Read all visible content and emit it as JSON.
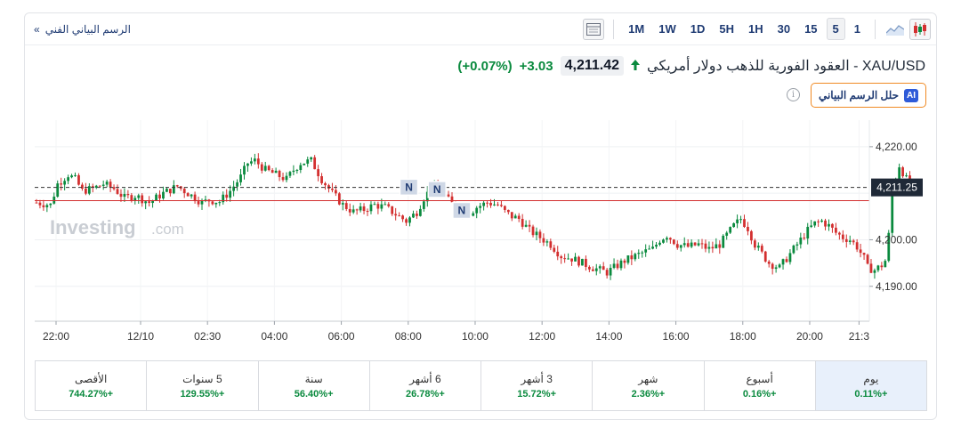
{
  "toolbar": {
    "back_label": "الرسم البياني الفني",
    "back_chevron": "»",
    "timeframes": [
      "1M",
      "1W",
      "1D",
      "5H",
      "1H",
      "30",
      "15",
      "5",
      "1"
    ],
    "active_timeframe": "5"
  },
  "header": {
    "title": "XAU/USD - العقود الفورية للذهب دولار أمريكي",
    "price": "4,211.42",
    "change": "+3.03",
    "change_pct": "(+0.07%)",
    "up_color": "#0a8a3e",
    "down_color": "#d32f2f"
  },
  "analyze_button": {
    "badge": "AI",
    "label": "حلل الرسم البياني"
  },
  "watermark": {
    "brand": "Investing",
    "suffix": ".com"
  },
  "chart_data": {
    "type": "candlestick",
    "symbol": "XAU/USD",
    "interval": "5",
    "x_tick_labels": [
      "22:00",
      "12/10",
      "02:30",
      "04:00",
      "06:00",
      "08:00",
      "10:00",
      "12:00",
      "14:00",
      "16:00",
      "18:00",
      "20:00",
      "21:3"
    ],
    "y_tick_labels": [
      "4,220.00",
      "4,200.00",
      "4,190.00"
    ],
    "y_ticks": [
      4220,
      4210,
      4200,
      4190
    ],
    "ylim": [
      4182.5,
      4223.8
    ],
    "xlim": [
      0,
      237
    ],
    "last_price_label": "4,211.25",
    "last_price": 4211.25,
    "prev_close_line": 4208.4,
    "grid": true,
    "path": [
      [
        0,
        4208
      ],
      [
        4,
        4207.5
      ],
      [
        6,
        4212
      ],
      [
        9,
        4214
      ],
      [
        11,
        4213
      ],
      [
        13,
        4210.5
      ],
      [
        16,
        4211
      ],
      [
        19,
        4212
      ],
      [
        22,
        4211
      ],
      [
        25,
        4209
      ],
      [
        28,
        4209.5
      ],
      [
        32,
        4208
      ],
      [
        36,
        4210
      ],
      [
        40,
        4211.5
      ],
      [
        44,
        4209.5
      ],
      [
        47,
        4208
      ],
      [
        49,
        4208.5
      ],
      [
        52,
        4208.2
      ],
      [
        55,
        4210.5
      ],
      [
        58,
        4213.5
      ],
      [
        60,
        4216.5
      ],
      [
        62,
        4217
      ],
      [
        65,
        4215
      ],
      [
        68,
        4214
      ],
      [
        71,
        4213
      ],
      [
        73,
        4215
      ],
      [
        75,
        4216.5
      ],
      [
        78,
        4217
      ],
      [
        81,
        4213
      ],
      [
        84,
        4210
      ],
      [
        87,
        4207.5
      ],
      [
        90,
        4206
      ],
      [
        93,
        4206.5
      ],
      [
        96,
        4207.5
      ],
      [
        99,
        4207
      ],
      [
        102,
        4205.5
      ],
      [
        105,
        4204
      ],
      [
        108,
        4206
      ],
      [
        110,
        4209
      ],
      [
        112,
        4211
      ],
      [
        115,
        4210.5
      ],
      [
        117,
        4208.5
      ],
      [
        119,
        4207
      ],
      [
        121,
        4206
      ],
      [
        123,
        4205.8
      ],
      [
        125,
        4207
      ],
      [
        128,
        4208
      ],
      [
        131,
        4207.5
      ],
      [
        133,
        4206
      ],
      [
        135,
        4205
      ],
      [
        137,
        4204.5
      ],
      [
        140,
        4202
      ],
      [
        143,
        4200.5
      ],
      [
        146,
        4199
      ],
      [
        149,
        4196.5
      ],
      [
        152,
        4196
      ],
      [
        155,
        4195
      ],
      [
        158,
        4194
      ],
      [
        160,
        4193.5
      ],
      [
        162,
        4193
      ],
      [
        164,
        4194
      ],
      [
        167,
        4195.5
      ],
      [
        170,
        4196.5
      ],
      [
        173,
        4197.5
      ],
      [
        175,
        4198
      ],
      [
        177,
        4200
      ],
      [
        179,
        4201
      ],
      [
        182,
        4199
      ],
      [
        185,
        4198.5
      ],
      [
        188,
        4199
      ],
      [
        191,
        4198
      ],
      [
        194,
        4199
      ],
      [
        196,
        4201
      ],
      [
        198,
        4203
      ],
      [
        200,
        4204.5
      ],
      [
        202,
        4202.5
      ],
      [
        204,
        4199
      ],
      [
        206,
        4197
      ],
      [
        208,
        4195
      ],
      [
        211,
        4194
      ],
      [
        213,
        4196
      ],
      [
        216,
        4199
      ],
      [
        219,
        4202
      ],
      [
        221,
        4203.5
      ],
      [
        223,
        4204
      ],
      [
        225,
        4203
      ],
      [
        227,
        4201.5
      ],
      [
        229,
        4200.5
      ],
      [
        231,
        4200
      ],
      [
        233,
        4198.5
      ],
      [
        235,
        4196
      ],
      [
        236,
        4194
      ],
      [
        238,
        4193.5
      ],
      [
        240,
        4194.5
      ],
      [
        241.5,
        4196
      ],
      [
        243,
        4211
      ],
      [
        245,
        4216
      ],
      [
        247,
        4213
      ],
      [
        248.5,
        4211.25
      ]
    ],
    "news_markers": [
      "N",
      "N",
      "N"
    ]
  },
  "performance": [
    {
      "label": "يوم",
      "value": "+0.11%",
      "active": true
    },
    {
      "label": "أسبوع",
      "value": "+0.16%"
    },
    {
      "label": "شهر",
      "value": "+2.36%"
    },
    {
      "label": "3 أشهر",
      "value": "+15.72%"
    },
    {
      "label": "6 أشهر",
      "value": "+26.78%"
    },
    {
      "label": "سنة",
      "value": "+56.40%"
    },
    {
      "label": "5 سنوات",
      "value": "+129.55%"
    },
    {
      "label": "الأقصى",
      "value": "+744.27%"
    }
  ]
}
